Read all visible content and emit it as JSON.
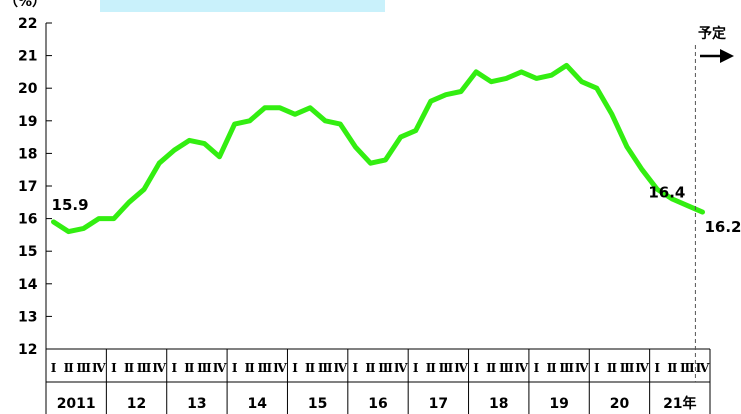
{
  "chart_data": {
    "type": "line",
    "ylabel": "（%）",
    "ylim": [
      12,
      22
    ],
    "yticks": [
      12,
      13,
      14,
      15,
      16,
      17,
      18,
      19,
      20,
      21,
      22
    ],
    "years": [
      "2011",
      "12",
      "13",
      "14",
      "15",
      "16",
      "17",
      "18",
      "19",
      "20",
      "21年"
    ],
    "quarter_labels": [
      "Ⅰ",
      "Ⅱ",
      "Ⅲ",
      "Ⅳ"
    ],
    "plan_label": "予定",
    "series": [
      {
        "color": "#33ee11",
        "x": [
          "2011 Q1",
          "2011 Q2",
          "2011 Q3",
          "2011 Q4",
          "2012 Q1",
          "2012 Q2",
          "2012 Q3",
          "2012 Q4",
          "2013 Q1",
          "2013 Q2",
          "2013 Q3",
          "2013 Q4",
          "2014 Q1",
          "2014 Q2",
          "2014 Q3",
          "2014 Q4",
          "2015 Q1",
          "2015 Q2",
          "2015 Q3",
          "2015 Q4",
          "2016 Q1",
          "2016 Q2",
          "2016 Q3",
          "2016 Q4",
          "2017 Q1",
          "2017 Q2",
          "2017 Q3",
          "2017 Q4",
          "2018 Q1",
          "2018 Q2",
          "2018 Q3",
          "2018 Q4",
          "2019 Q1",
          "2019 Q2",
          "2019 Q3",
          "2019 Q4",
          "2020 Q1",
          "2020 Q2",
          "2020 Q3",
          "2020 Q4",
          "2021 Q1",
          "2021 Q2",
          "2021 Q3",
          "2021 Q4"
        ],
        "values": [
          15.9,
          15.6,
          15.7,
          16.0,
          16.0,
          16.5,
          16.9,
          17.7,
          18.1,
          18.4,
          18.3,
          17.9,
          18.9,
          19.0,
          19.4,
          19.4,
          19.2,
          19.4,
          19.0,
          18.9,
          18.2,
          17.7,
          17.8,
          18.5,
          18.7,
          19.6,
          19.8,
          19.9,
          20.5,
          20.2,
          20.3,
          20.5,
          20.3,
          20.4,
          20.7,
          20.2,
          20.0,
          19.2,
          18.2,
          17.5,
          16.9,
          16.6,
          16.4,
          16.2
        ]
      }
    ],
    "annotations": [
      {
        "text": "15.9",
        "at": "2011 Q1"
      },
      {
        "text": "16.4",
        "at": "2021 Q3"
      },
      {
        "text": "16.2",
        "at": "2021 Q4"
      }
    ],
    "grid": false
  }
}
